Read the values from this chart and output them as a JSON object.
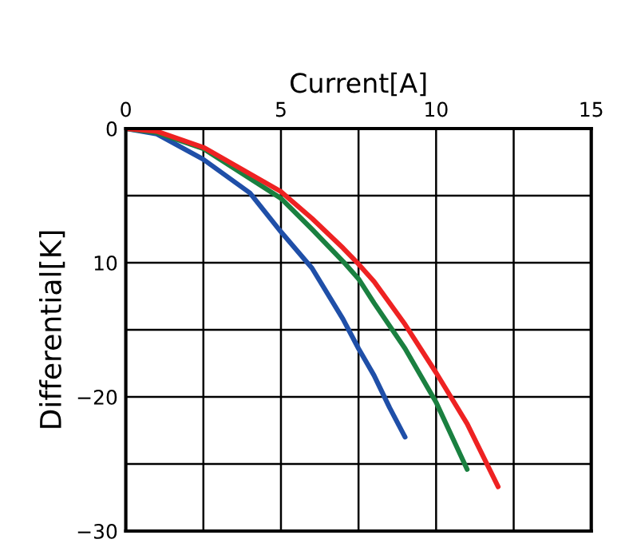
{
  "chart_data": {
    "type": "line",
    "xlabel": "Current[A]",
    "ylabel": "Differential[K]",
    "xlim": [
      0,
      15
    ],
    "ylim": [
      -30,
      0
    ],
    "xticks": [
      0,
      {
        "value": 2.5,
        "label": null
      },
      5,
      {
        "value": 7.5,
        "label": null
      },
      10,
      {
        "value": 12.5,
        "label": null
      },
      15
    ],
    "yticks": [
      0,
      {
        "value": -5,
        "label": null
      },
      {
        "value": -10,
        "label": "10"
      },
      {
        "value": -15,
        "label": null
      },
      {
        "value": -20,
        "label": "−20"
      },
      {
        "value": -25,
        "label": null
      },
      {
        "value": -30,
        "label": "−30"
      }
    ],
    "grid": true,
    "line_style": "solid",
    "series": [
      {
        "color": "#1f4fa8",
        "x": [
          0,
          1,
          2.5,
          4,
          5,
          6,
          7,
          7.5,
          8,
          8.5,
          9
        ],
        "values": [
          0,
          -0.4,
          -2.3,
          -4.8,
          -7.7,
          -10.4,
          -14.2,
          -16.4,
          -18.4,
          -20.8,
          -23
        ]
      },
      {
        "color": "#1a8040",
        "x": [
          0,
          1,
          2.5,
          5,
          6,
          7,
          7.5,
          8,
          9,
          10,
          11
        ],
        "values": [
          0,
          -0.3,
          -1.5,
          -5.2,
          -7.5,
          -9.9,
          -11.2,
          -13,
          -16.4,
          -20.4,
          -25.4
        ]
      },
      {
        "color": "#ee2222",
        "x": [
          0,
          1,
          2.5,
          5,
          6,
          7,
          7.5,
          8,
          9,
          10,
          11,
          12
        ],
        "values": [
          0,
          -0.2,
          -1.4,
          -4.7,
          -6.7,
          -8.9,
          -10.1,
          -11.4,
          -14.6,
          -18.2,
          -22,
          -26.7
        ]
      }
    ]
  }
}
